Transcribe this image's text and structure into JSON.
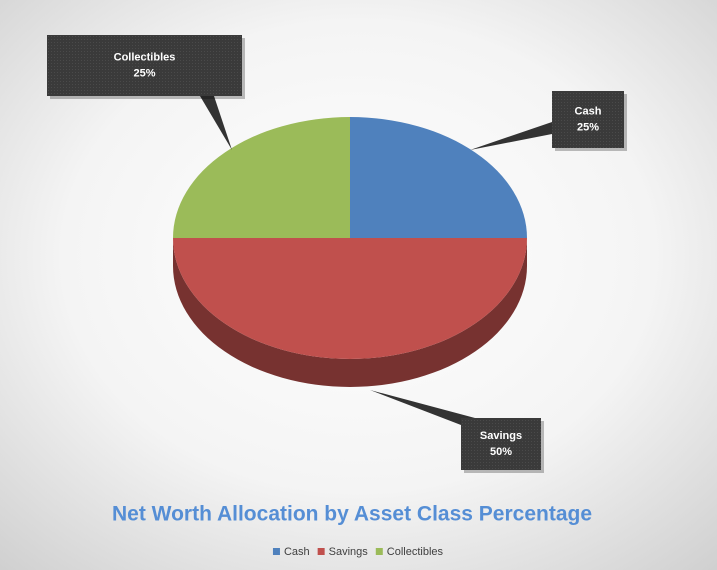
{
  "chart_data": {
    "type": "pie",
    "title": "Net Worth Allocation by Asset Class Percentage",
    "categories": [
      "Cash",
      "Savings",
      "Collectibles"
    ],
    "values": [
      25,
      50,
      25
    ],
    "value_labels": [
      "25%",
      "50%",
      "25%"
    ],
    "colors": [
      "#4f81bd",
      "#c0504d",
      "#9bbb59"
    ],
    "legend": "bottom"
  }
}
